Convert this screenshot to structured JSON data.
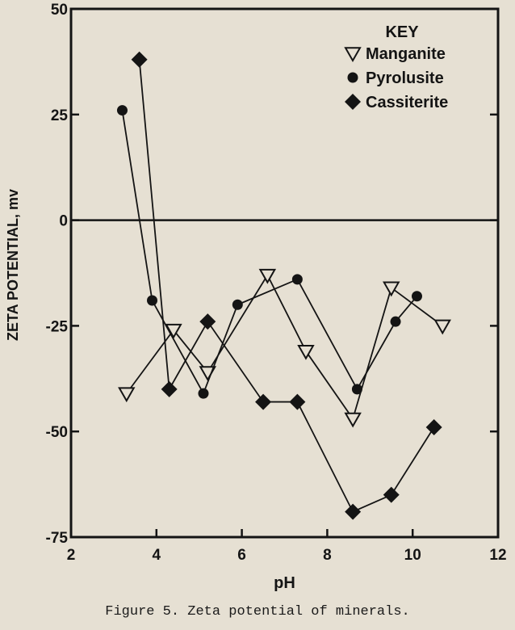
{
  "chart_data": {
    "type": "line",
    "xlabel": "pH",
    "ylabel": "ZETA POTENTIAL, mv",
    "xlim": [
      2,
      12
    ],
    "ylim": [
      -75,
      50
    ],
    "xticks": [
      2,
      4,
      6,
      8,
      10,
      12
    ],
    "yticks": [
      50,
      25,
      0,
      -25,
      -50,
      -75
    ],
    "grid": false,
    "zero_line": true,
    "legend_title": "KEY",
    "legend_placement": "top-right",
    "series": [
      {
        "name": "Manganite",
        "marker": "triangle-down-open",
        "x": [
          3.3,
          4.4,
          5.2,
          6.6,
          7.5,
          8.6,
          9.5,
          10.7
        ],
        "y": [
          -41,
          -26,
          -36,
          -13,
          -31,
          -47,
          -16,
          -25
        ]
      },
      {
        "name": "Pyrolusite",
        "marker": "circle-filled",
        "x": [
          3.2,
          3.9,
          5.1,
          5.9,
          7.3,
          8.7,
          9.6,
          10.1
        ],
        "y": [
          26,
          -19,
          -41,
          -20,
          -14,
          -40,
          -24,
          -18
        ]
      },
      {
        "name": "Cassiterite",
        "marker": "diamond-filled",
        "x": [
          3.6,
          4.3,
          5.2,
          6.5,
          7.3,
          8.6,
          9.5,
          10.5
        ],
        "y": [
          38,
          -40,
          -24,
          -43,
          -43,
          -69,
          -65,
          -49
        ]
      }
    ]
  },
  "caption": "Figure 5.  Zeta potential of minerals.",
  "colors": {
    "background": "#e6e0d3",
    "ink": "#141414"
  }
}
